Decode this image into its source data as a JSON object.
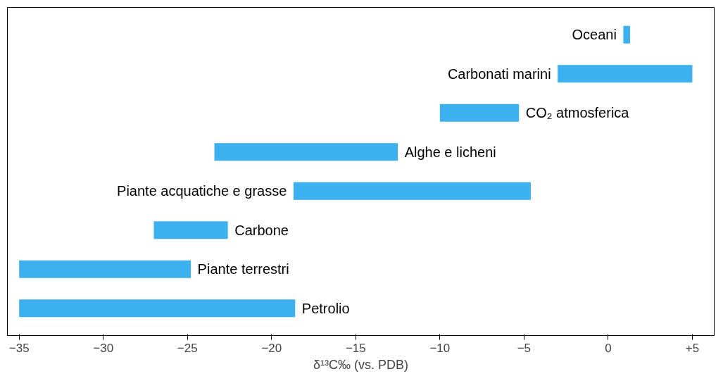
{
  "chart_data": {
    "type": "bar",
    "orientation": "horizontal",
    "categories": [
      "Oceani",
      "Carbonati marini",
      "CO₂ atmosferica",
      "Alghe e licheni",
      "Piante acquatiche e grasse",
      "Carbone",
      "Piante terrestri",
      "Petrolio"
    ],
    "base": [
      0.9,
      -3,
      -10,
      -23.4,
      -18.7,
      -27,
      -35,
      -35
    ],
    "values": [
      0.4,
      8,
      4.7,
      10.9,
      14.1,
      4.4,
      10.2,
      16.4
    ],
    "color": "#3db0f0",
    "xlim": [
      -35.7,
      6.3
    ],
    "xticks": [
      -35,
      -30,
      -25,
      -20,
      -15,
      -10,
      -5,
      0,
      {
        "value": 5,
        "label": "+5"
      }
    ],
    "xlabel": "δ¹³C‰ (vs. PDB)",
    "grid": false,
    "tick_labels": "x"
  }
}
